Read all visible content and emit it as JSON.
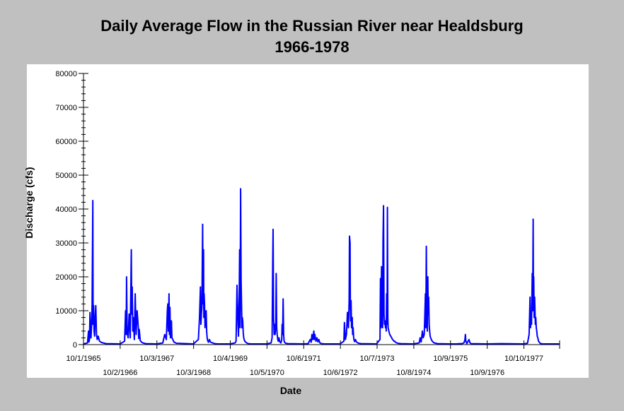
{
  "chart_data": {
    "type": "line",
    "title": "Daily Average Flow in the Russian River near Healdsburg",
    "subtitle": "1966-1978",
    "xlabel": "Date",
    "ylabel": "Discharge (cfs)",
    "ylim": [
      0,
      80000
    ],
    "y_ticks": [
      0,
      10000,
      20000,
      30000,
      40000,
      50000,
      60000,
      70000,
      80000
    ],
    "x_range": [
      "1965-10-01",
      "1978-10-01"
    ],
    "x_ticks": [
      {
        "date": "1965-10-01",
        "label": "10/1/1965",
        "row": 0
      },
      {
        "date": "1966-10-02",
        "label": "10/2/1966",
        "row": 1
      },
      {
        "date": "1967-10-03",
        "label": "10/3/1967",
        "row": 0
      },
      {
        "date": "1968-10-03",
        "label": "10/3/1968",
        "row": 1
      },
      {
        "date": "1969-10-04",
        "label": "10/4/1969",
        "row": 0
      },
      {
        "date": "1970-10-05",
        "label": "10/5/1970",
        "row": 1
      },
      {
        "date": "1971-10-06",
        "label": "10/6/1971",
        "row": 0
      },
      {
        "date": "1972-10-06",
        "label": "10/6/1972",
        "row": 1
      },
      {
        "date": "1973-10-07",
        "label": "10/7/1973",
        "row": 0
      },
      {
        "date": "1974-10-08",
        "label": "10/8/1974",
        "row": 1
      },
      {
        "date": "1975-10-09",
        "label": "10/9/1975",
        "row": 0
      },
      {
        "date": "1976-10-09",
        "label": "10/9/1976",
        "row": 1
      },
      {
        "date": "1977-10-10",
        "label": "10/10/1977",
        "row": 0
      }
    ],
    "grid": false,
    "line_color": "#0000ff",
    "series": [
      {
        "x": [
          "1965-10-01",
          "1965-11-10",
          "1965-11-20",
          "1965-11-25",
          "1965-11-30",
          "1965-12-05",
          "1965-12-15",
          "1965-12-22",
          "1965-12-26",
          "1966-01-02",
          "1966-01-05",
          "1966-01-10",
          "1966-01-15",
          "1966-01-20",
          "1966-01-25",
          "1966-02-01",
          "1966-02-08",
          "1966-02-15",
          "1966-02-25",
          "1966-03-10",
          "1966-04-01",
          "1966-05-15",
          "1966-10-01",
          "1966-11-15",
          "1966-11-25",
          "1966-12-01",
          "1966-12-05",
          "1966-12-10",
          "1966-12-20",
          "1966-12-30",
          "1967-01-10",
          "1967-01-21",
          "1967-01-25",
          "1967-01-30",
          "1967-02-05",
          "1967-02-10",
          "1967-02-20",
          "1967-03-01",
          "1967-03-10",
          "1967-03-20",
          "1967-04-01",
          "1967-04-05",
          "1967-04-10",
          "1967-04-20",
          "1967-05-01",
          "1967-05-15",
          "1967-06-15",
          "1967-10-01",
          "1967-12-01",
          "1967-12-20",
          "1968-01-05",
          "1968-01-15",
          "1968-01-20",
          "1968-01-25",
          "1968-02-01",
          "1968-02-05",
          "1968-02-10",
          "1968-02-15",
          "1968-02-20",
          "1968-02-25",
          "1968-03-01",
          "1968-03-10",
          "1968-03-20",
          "1968-04-15",
          "1968-10-01",
          "1968-11-20",
          "1968-12-01",
          "1968-12-10",
          "1968-12-15",
          "1968-12-20",
          "1968-12-25",
          "1969-01-01",
          "1969-01-05",
          "1969-01-10",
          "1969-01-13",
          "1969-01-16",
          "1969-01-20",
          "1969-01-25",
          "1969-02-01",
          "1969-02-05",
          "1969-02-10",
          "1969-02-15",
          "1969-02-20",
          "1969-02-28",
          "1969-03-10",
          "1969-03-20",
          "1969-04-01",
          "1969-04-10",
          "1969-05-01",
          "1969-06-01",
          "1969-10-01",
          "1969-11-20",
          "1969-12-01",
          "1969-12-10",
          "1969-12-20",
          "1969-12-25",
          "1970-01-01",
          "1970-01-05",
          "1970-01-10",
          "1970-01-15",
          "1970-01-20",
          "1970-01-24",
          "1970-01-28",
          "1970-02-01",
          "1970-02-05",
          "1970-02-10",
          "1970-02-15",
          "1970-02-20",
          "1970-02-25",
          "1970-03-05",
          "1970-03-15",
          "1970-04-01",
          "1970-05-01",
          "1970-10-01",
          "1970-11-15",
          "1970-11-25",
          "1970-12-01",
          "1970-12-05",
          "1970-12-10",
          "1970-12-15",
          "1970-12-20",
          "1970-12-25",
          "1971-01-01",
          "1971-01-05",
          "1971-01-10",
          "1971-01-15",
          "1971-01-20",
          "1971-01-25",
          "1971-02-01",
          "1971-02-10",
          "1971-02-20",
          "1971-03-01",
          "1971-03-05",
          "1971-03-10",
          "1971-03-15",
          "1971-03-20",
          "1971-03-25",
          "1971-04-01",
          "1971-04-10",
          "1971-05-01",
          "1971-10-01",
          "1971-11-20",
          "1971-12-01",
          "1971-12-10",
          "1971-12-20",
          "1971-12-27",
          "1972-01-05",
          "1972-01-15",
          "1972-01-20",
          "1972-01-25",
          "1972-02-05",
          "1972-02-15",
          "1972-02-25",
          "1972-03-05",
          "1972-03-15",
          "1972-04-01",
          "1972-05-01",
          "1972-10-01",
          "1972-11-10",
          "1972-11-15",
          "1972-11-25",
          "1972-12-05",
          "1972-12-15",
          "1972-12-25",
          "1973-01-01",
          "1973-01-05",
          "1973-01-10",
          "1973-01-13",
          "1973-01-16",
          "1973-01-20",
          "1973-01-25",
          "1973-02-01",
          "1973-02-05",
          "1973-02-10",
          "1973-02-15",
          "1973-02-20",
          "1973-02-25",
          "1973-03-05",
          "1973-03-15",
          "1973-03-25",
          "1973-04-05",
          "1973-05-01",
          "1973-10-01",
          "1973-11-05",
          "1973-11-10",
          "1973-11-15",
          "1973-11-20",
          "1973-11-25",
          "1973-12-01",
          "1973-12-05",
          "1973-12-10",
          "1973-12-15",
          "1973-12-20",
          "1973-12-25",
          "1973-12-29",
          "1974-01-02",
          "1974-01-06",
          "1974-01-10",
          "1974-01-15",
          "1974-01-18",
          "1974-01-22",
          "1974-01-25",
          "1974-02-01",
          "1974-02-10",
          "1974-02-20",
          "1974-03-01",
          "1974-03-10",
          "1974-03-20",
          "1974-03-25",
          "1974-04-01",
          "1974-04-05",
          "1974-04-10",
          "1974-04-20",
          "1974-05-01",
          "1974-06-01",
          "1974-10-01",
          "1974-12-01",
          "1974-12-10",
          "1974-12-20",
          "1975-01-01",
          "1975-01-10",
          "1975-01-20",
          "1975-01-25",
          "1975-02-01",
          "1975-02-05",
          "1975-02-10",
          "1975-02-15",
          "1975-02-20",
          "1975-02-25",
          "1975-03-01",
          "1975-03-05",
          "1975-03-10",
          "1975-03-15",
          "1975-03-20",
          "1975-03-25",
          "1975-04-01",
          "1975-04-10",
          "1975-04-20",
          "1975-05-01",
          "1975-06-01",
          "1975-10-01",
          "1975-12-01",
          "1976-01-15",
          "1976-02-01",
          "1976-02-20",
          "1976-03-01",
          "1976-03-05",
          "1976-03-10",
          "1976-03-20",
          "1976-04-01",
          "1976-04-10",
          "1976-04-20",
          "1976-05-01",
          "1976-10-01",
          "1977-03-01",
          "1977-10-01",
          "1977-11-15",
          "1977-12-01",
          "1977-12-10",
          "1977-12-15",
          "1977-12-20",
          "1977-12-25",
          "1978-01-01",
          "1978-01-05",
          "1978-01-10",
          "1978-01-13",
          "1978-01-16",
          "1978-01-20",
          "1978-01-25",
          "1978-02-01",
          "1978-02-05",
          "1978-02-10",
          "1978-02-15",
          "1978-02-20",
          "1978-02-25",
          "1978-03-01",
          "1978-03-05",
          "1978-03-10",
          "1978-03-15",
          "1978-03-20",
          "1978-03-25",
          "1978-04-01",
          "1978-04-10",
          "1978-04-20",
          "1978-05-01",
          "1978-06-01",
          "1978-10-01"
        ],
        "y": [
          200,
          500,
          4000,
          800,
          1500,
          9500,
          2000,
          6000,
          12000,
          42500,
          6000,
          11500,
          4000,
          2500,
          7500,
          11500,
          3000,
          1500,
          2500,
          1000,
          600,
          300,
          200,
          1000,
          10000,
          3000,
          20000,
          4000,
          2000,
          9000,
          2000,
          28000,
          9000,
          17000,
          4000,
          8000,
          1500,
          15000,
          3000,
          10000,
          5000,
          1800,
          4500,
          1200,
          800,
          500,
          300,
          200,
          500,
          3000,
          1500,
          10000,
          12000,
          4000,
          15000,
          3000,
          11000,
          2000,
          6000,
          7000,
          2000,
          1500,
          800,
          400,
          200,
          1500,
          8000,
          17000,
          6000,
          9000,
          11000,
          35500,
          12000,
          28000,
          8000,
          15000,
          12000,
          5000,
          9500,
          10000,
          4000,
          2000,
          1200,
          700,
          1500,
          800,
          600,
          500,
          300,
          200,
          200,
          500,
          1000,
          17500,
          6000,
          2500,
          14000,
          28000,
          5000,
          46000,
          19000,
          12000,
          5000,
          8000,
          7000,
          3500,
          2000,
          1500,
          1000,
          800,
          500,
          300,
          200,
          200,
          500,
          2000,
          25000,
          34000,
          8000,
          3000,
          6000,
          3000,
          6500,
          21000,
          5000,
          3000,
          1500,
          1000,
          2000,
          800,
          500,
          1500,
          6000,
          3000,
          13500,
          3000,
          1000,
          600,
          400,
          300,
          200,
          300,
          1000,
          1500,
          700,
          3000,
          1500,
          4000,
          1500,
          3000,
          1000,
          2000,
          800,
          1500,
          500,
          300,
          200,
          200,
          1000,
          6500,
          1500,
          3000,
          9500,
          5000,
          13000,
          32000,
          30000,
          12000,
          7000,
          13000,
          5000,
          8000,
          3000,
          5000,
          2000,
          1200,
          900,
          1500,
          800,
          600,
          400,
          300,
          200,
          1500,
          19500,
          5000,
          23000,
          7000,
          5000,
          31000,
          41000,
          9000,
          6000,
          7000,
          5000,
          7000,
          4000,
          15000,
          6000,
          40500,
          8000,
          5000,
          4000,
          3000,
          2500,
          2000,
          1500,
          1200,
          1000,
          1000,
          800,
          700,
          500,
          400,
          300,
          200,
          500,
          2000,
          800,
          4000,
          2000,
          3000,
          8000,
          15000,
          5000,
          29000,
          8000,
          4000,
          20000,
          9000,
          14000,
          6000,
          4000,
          2500,
          2000,
          1500,
          1000,
          700,
          500,
          300,
          200,
          200,
          300,
          300,
          500,
          1500,
          3000,
          1000,
          300,
          1000,
          1500,
          500,
          300,
          200,
          300,
          200,
          400,
          3000,
          14000,
          5000,
          9000,
          6000,
          21000,
          10000,
          37000,
          12000,
          20000,
          8000,
          14000,
          6000,
          8000,
          5000,
          4000,
          2500,
          2000,
          1500,
          1000,
          800,
          600,
          400,
          300,
          300,
          200,
          200,
          200,
          200,
          200
        ]
      }
    ]
  }
}
